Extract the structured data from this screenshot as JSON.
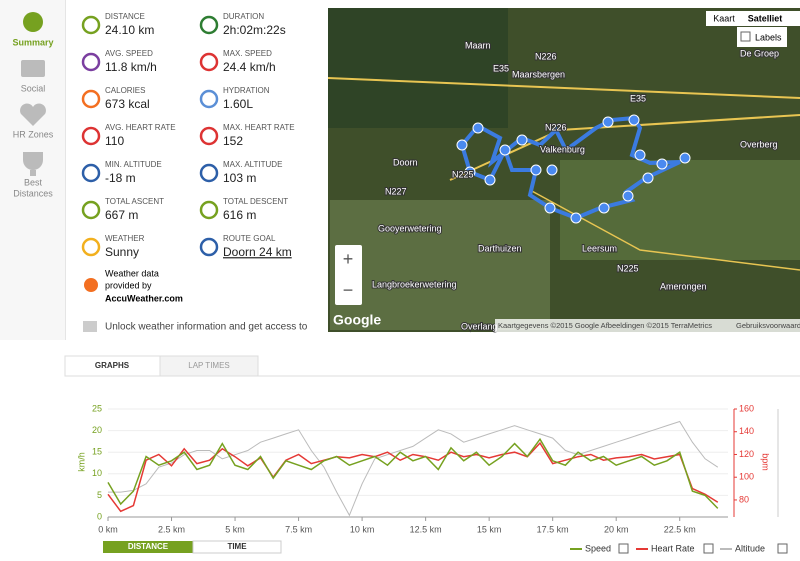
{
  "nav": [
    "Summary",
    "Social",
    "HR Zones",
    "Best",
    "Distances"
  ],
  "stats": [
    {
      "label": "DISTANCE",
      "value": "24.10 km"
    },
    {
      "label": "DURATION",
      "value": "2h:02m:22s"
    },
    {
      "label": "AVG. SPEED",
      "value": "11.8 km/h"
    },
    {
      "label": "MAX. SPEED",
      "value": "24.4 km/h"
    },
    {
      "label": "CALORIES",
      "value": "673 kcal"
    },
    {
      "label": "HYDRATION",
      "value": "1.60L"
    },
    {
      "label": "AVG. HEART RATE",
      "value": "110"
    },
    {
      "label": "MAX. HEART RATE",
      "value": "152"
    },
    {
      "label": "MIN. ALTITUDE",
      "value": "-18 m"
    },
    {
      "label": "MAX. ALTITUDE",
      "value": "103 m"
    },
    {
      "label": "TOTAL ASCENT",
      "value": "667 m"
    },
    {
      "label": "TOTAL DESCENT",
      "value": "616 m"
    },
    {
      "label": "WEATHER",
      "value": "Sunny"
    },
    {
      "label": "ROUTE GOAL",
      "value": "Doorn 24 km"
    }
  ],
  "weather_note": [
    "Weather data",
    "provided by",
    "AccuWeather.com"
  ],
  "unlock": "Unlock weather information and get access to",
  "map": {
    "buttons": [
      "Kaart",
      "Satelliet",
      "Labels"
    ],
    "places": [
      "Maarn",
      "N226",
      "E35",
      "Maarsbergen",
      "E35",
      "De Groep",
      "N226",
      "Overberg",
      "Valkenburg",
      "Doorn",
      "N227",
      "N225",
      "Gooyerwetering",
      "Darthuizen",
      "Leersum",
      "N225",
      "Amerongen",
      "Langbroekerwetering",
      "Overlang"
    ],
    "zoom": [
      "+",
      "−"
    ],
    "brand": "Google",
    "attribution": "Kaartgegevens ©2015 Google Afbeeldingen ©2015 TerraMetrics",
    "terms": "Gebruiksvoorwaarden"
  },
  "tabs": [
    "GRAPHS",
    "LAP TIMES"
  ],
  "chart": {
    "type": "line",
    "y_label": "km/h",
    "y2_label": "bpm",
    "x": [
      0,
      0.5,
      1,
      1.5,
      2,
      2.5,
      3,
      3.5,
      4,
      4.5,
      5,
      5.5,
      6,
      6.5,
      7,
      7.5,
      8,
      8.5,
      9,
      9.5,
      10,
      10.5,
      11,
      11.5,
      12,
      12.5,
      13,
      13.5,
      14,
      14.5,
      15,
      15.5,
      16,
      16.5,
      17,
      17.5,
      18,
      18.5,
      19,
      19.5,
      20,
      20.5,
      21,
      21.5,
      22,
      22.5,
      23,
      23.5,
      24
    ],
    "xlim": [
      0,
      24.4
    ],
    "xticks": [
      {
        "value": 0,
        "label": "0 km"
      },
      {
        "value": 2.5,
        "label": "2.5 km"
      },
      {
        "value": 5,
        "label": "5 km"
      },
      {
        "value": 7.5,
        "label": "7.5 km"
      },
      {
        "value": 10,
        "label": "10 km"
      },
      {
        "value": 12.5,
        "label": "12.5 km"
      },
      {
        "value": 15,
        "label": "15 km"
      },
      {
        "value": 17.5,
        "label": "17.5 km"
      },
      {
        "value": 20,
        "label": "20 km"
      },
      {
        "value": 22.5,
        "label": "22.5 km"
      }
    ],
    "ylim": [
      0,
      25
    ],
    "yticks": [
      0,
      5,
      10,
      15,
      20,
      25
    ],
    "y2lim": [
      65,
      160
    ],
    "y2ticks": [
      80,
      100,
      120,
      140,
      160
    ],
    "y3lim": [
      -20,
      110
    ],
    "grid": true,
    "series": [
      {
        "name": "Speed",
        "color": "#76a120",
        "values": [
          8,
          3,
          6,
          14,
          12,
          13,
          15,
          11,
          12,
          17,
          12,
          11,
          14,
          9,
          13,
          12,
          11,
          13,
          14,
          12,
          13,
          14,
          12,
          15,
          13,
          14,
          11,
          16,
          13,
          15,
          12,
          14,
          17,
          14,
          18,
          13,
          12,
          15,
          13,
          14,
          12,
          13,
          14,
          12,
          13,
          15,
          6,
          5,
          2
        ]
      },
      {
        "name": "Heart Rate",
        "color": "#e53935",
        "axis": "y2",
        "values": [
          85,
          70,
          75,
          115,
          120,
          110,
          125,
          112,
          115,
          125,
          118,
          110,
          117,
          100,
          115,
          120,
          112,
          115,
          118,
          117,
          120,
          118,
          122,
          115,
          120,
          118,
          115,
          122,
          118,
          120,
          117,
          120,
          122,
          118,
          130,
          112,
          115,
          118,
          120,
          115,
          117,
          118,
          120,
          116,
          118,
          120,
          90,
          85,
          78
        ]
      },
      {
        "name": "Altitude",
        "color": "#bbbbbb",
        "axis": "y3",
        "values": [
          10,
          10,
          12,
          20,
          40,
          45,
          55,
          60,
          60,
          50,
          55,
          60,
          70,
          75,
          80,
          85,
          60,
          40,
          10,
          -18,
          20,
          50,
          55,
          60,
          65,
          75,
          85,
          80,
          70,
          75,
          80,
          85,
          90,
          85,
          80,
          75,
          60,
          55,
          60,
          65,
          70,
          75,
          80,
          85,
          90,
          95,
          70,
          50,
          40
        ]
      }
    ]
  },
  "toggle": [
    "DISTANCE",
    "TIME"
  ]
}
